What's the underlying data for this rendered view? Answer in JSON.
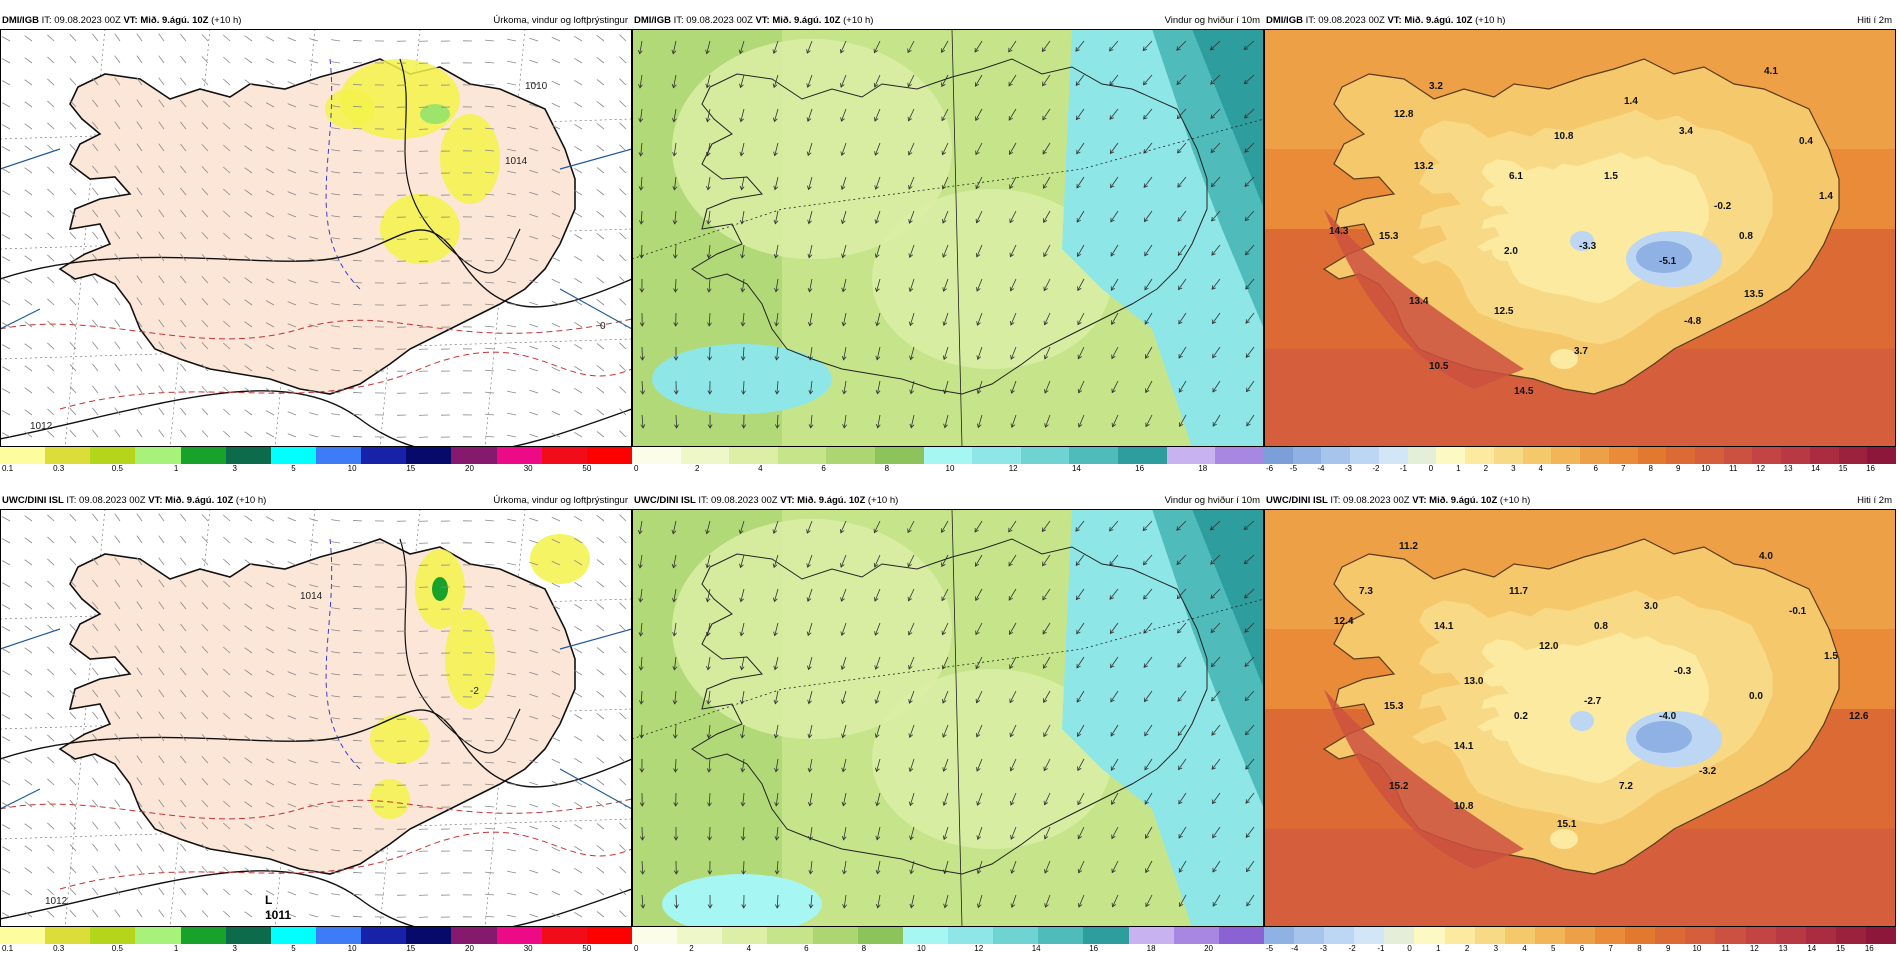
{
  "panels": [
    {
      "model": "DMI/IGB",
      "it": "IT: 09.08.2023 00Z",
      "vt_label": "VT:",
      "vt": "Mið. 9.ágú. 10Z",
      "lead": "(+10 h)",
      "title": "Úrkoma, vindur og loftþrýstingur",
      "kind": "precip",
      "legend_colors": [
        "#fdfd9e",
        "#dcdc3a",
        "#b5d51b",
        "#a6f27b",
        "#17a22c",
        "#0c6b4b",
        "#00ffff",
        "#3d7cf7",
        "#1722a9",
        "#070a6b",
        "#86196d",
        "#ec0a87",
        "#f20b18",
        "#ff0000"
      ],
      "legend_ticks": [
        "0.1",
        "0.3",
        "0.5",
        "1",
        "3",
        "5",
        "10",
        "15",
        "20",
        "30",
        "50"
      ],
      "map_labels": [
        {
          "text": "1012"
        },
        {
          "text": "1014"
        },
        {
          "text": "1010"
        },
        {
          "text": "0"
        }
      ]
    },
    {
      "model": "DMI/IGB",
      "it": "IT: 09.08.2023 00Z",
      "vt_label": "VT:",
      "vt": "Mið. 9.ágú. 10Z",
      "lead": "(+10 h)",
      "title": "Vindur og hviður í 10m",
      "kind": "wind",
      "legend_colors": [
        "#fbfde8",
        "#eef7c8",
        "#dbefa6",
        "#c6e58a",
        "#acd672",
        "#8cc35a",
        "#a6f6f4",
        "#8ee7e6",
        "#6fd3d2",
        "#4fbcbb",
        "#2d9e9d",
        "#c9b2f0",
        "#a887e3"
      ],
      "legend_ticks": [
        "0",
        "2",
        "4",
        "6",
        "8",
        "10",
        "12",
        "14",
        "16",
        "18"
      ],
      "map_labels": []
    },
    {
      "model": "DMI/IGB",
      "it": "IT: 09.08.2023 00Z",
      "vt_label": "VT:",
      "vt": "Mið. 9.ágú. 10Z",
      "lead": "(+10 h)",
      "title": "Hiti í 2m",
      "kind": "temp",
      "legend_colors": [
        "#7a9fd9",
        "#8fb1e3",
        "#a6c4ec",
        "#bcd6f3",
        "#d2e6f7",
        "#e3efd9",
        "#fdf9c2",
        "#fbeaa0",
        "#f8d985",
        "#f5c86c",
        "#f2b557",
        "#eea046",
        "#e98b38",
        "#e3782f",
        "#dc6a34",
        "#d55f3c",
        "#cd5140",
        "#c44444",
        "#b83843",
        "#aa2c40",
        "#9b213d",
        "#8c173a"
      ],
      "legend_ticks": [
        "-6",
        "-5",
        "-4",
        "-3",
        "-2",
        "-1",
        "0",
        "1",
        "2",
        "3",
        "4",
        "5",
        "6",
        "7",
        "8",
        "9",
        "10",
        "11",
        "12",
        "13",
        "14",
        "15",
        "16"
      ],
      "map_labels": [
        {
          "text": "3.2"
        },
        {
          "text": "12.8"
        },
        {
          "text": "10.8"
        },
        {
          "text": "1.4"
        },
        {
          "text": "3.4"
        },
        {
          "text": "4.1"
        },
        {
          "text": "0.4"
        },
        {
          "text": "13.2"
        },
        {
          "text": "6.1"
        },
        {
          "text": "1.5"
        },
        {
          "text": "-0.2"
        },
        {
          "text": "1.4"
        },
        {
          "text": "14.3"
        },
        {
          "text": "15.3"
        },
        {
          "text": "2.0"
        },
        {
          "text": "-3.3"
        },
        {
          "text": "-5.1"
        },
        {
          "text": "0.8"
        },
        {
          "text": "13.4"
        },
        {
          "text": "12.5"
        },
        {
          "text": "13.5"
        },
        {
          "text": "-4.8"
        },
        {
          "text": "3.7"
        },
        {
          "text": "10.5"
        },
        {
          "text": "14.5"
        }
      ]
    },
    {
      "model": "UWC/DINI ISL",
      "it": "IT: 09.08.2023 00Z",
      "vt_label": "VT:",
      "vt": "Mið. 9.ágú. 10Z",
      "lead": "(+10 h)",
      "title": "Úrkoma, vindur og loftþrýstingur",
      "kind": "precip",
      "legend_colors": [
        "#fdfd9e",
        "#dcdc3a",
        "#b5d51b",
        "#a6f27b",
        "#17a22c",
        "#0c6b4b",
        "#00ffff",
        "#3d7cf7",
        "#1722a9",
        "#070a6b",
        "#86196d",
        "#ec0a87",
        "#f20b18",
        "#ff0000"
      ],
      "legend_ticks": [
        "0.1",
        "0.3",
        "0.5",
        "1",
        "3",
        "5",
        "10",
        "15",
        "20",
        "30",
        "50"
      ],
      "map_labels": [
        {
          "text": "1012"
        },
        {
          "text": "1014"
        },
        {
          "text": "L"
        },
        {
          "text": "1011"
        },
        {
          "text": "-2"
        }
      ]
    },
    {
      "model": "UWC/DINI ISL",
      "it": "IT: 09.08.2023 00Z",
      "vt_label": "VT:",
      "vt": "Mið. 9.ágú. 10Z",
      "lead": "(+10 h)",
      "title": "Vindur og hviður í 10m",
      "kind": "wind",
      "legend_colors": [
        "#fbfde8",
        "#eef7c8",
        "#dbefa6",
        "#c6e58a",
        "#acd672",
        "#8cc35a",
        "#a6f6f4",
        "#8ee7e6",
        "#6fd3d2",
        "#4fbcbb",
        "#2d9e9d",
        "#c9b2f0",
        "#a887e3",
        "#8a62d3"
      ],
      "legend_ticks": [
        "0",
        "2",
        "4",
        "6",
        "8",
        "10",
        "12",
        "14",
        "16",
        "18",
        "20"
      ],
      "map_labels": []
    },
    {
      "model": "UWC/DINI ISL",
      "it": "IT: 09.08.2023 00Z",
      "vt_label": "VT:",
      "vt": "Mið. 9.ágú. 10Z",
      "lead": "(+10 h)",
      "title": "Hiti í 2m",
      "kind": "temp",
      "legend_colors": [
        "#8fb1e3",
        "#a6c4ec",
        "#bcd6f3",
        "#d2e6f7",
        "#e3efd9",
        "#fdf9c2",
        "#fbeaa0",
        "#f8d985",
        "#f5c86c",
        "#f2b557",
        "#eea046",
        "#e98b38",
        "#e3782f",
        "#dc6a34",
        "#d55f3c",
        "#cd5140",
        "#c44444",
        "#b83843",
        "#aa2c40",
        "#9b213d",
        "#8c173a"
      ],
      "legend_ticks": [
        "-5",
        "-4",
        "-3",
        "-2",
        "-1",
        "0",
        "1",
        "2",
        "3",
        "4",
        "5",
        "6",
        "7",
        "8",
        "9",
        "10",
        "11",
        "12",
        "13",
        "14",
        "15",
        "16"
      ],
      "map_labels": [
        {
          "text": "11.2"
        },
        {
          "text": "4.0"
        },
        {
          "text": "7.3"
        },
        {
          "text": "11.7"
        },
        {
          "text": "3.0"
        },
        {
          "text": "-0.1"
        },
        {
          "text": "12.4"
        },
        {
          "text": "14.1"
        },
        {
          "text": "0.8"
        },
        {
          "text": "12.0"
        },
        {
          "text": "13.0"
        },
        {
          "text": "-0.3"
        },
        {
          "text": "1.5"
        },
        {
          "text": "15.3"
        },
        {
          "text": "0.2"
        },
        {
          "text": "-2.7"
        },
        {
          "text": "-4.0"
        },
        {
          "text": "0.0"
        },
        {
          "text": "12.6"
        },
        {
          "text": "14.1"
        },
        {
          "text": "15.2"
        },
        {
          "text": "7.2"
        },
        {
          "text": "-3.2"
        },
        {
          "text": "10.8"
        },
        {
          "text": "15.1"
        }
      ]
    }
  ]
}
